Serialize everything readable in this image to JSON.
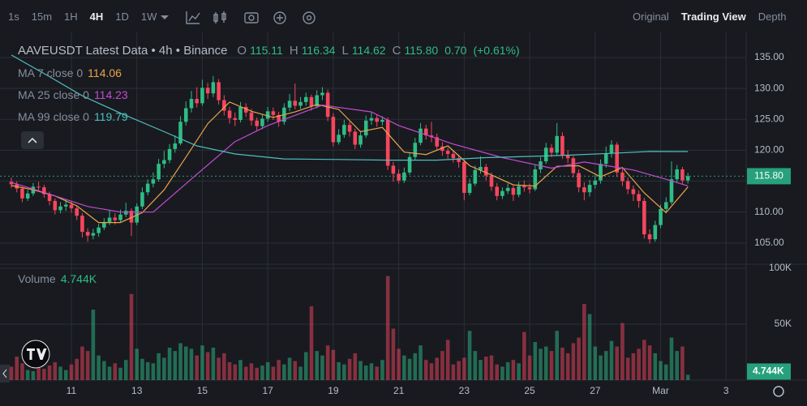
{
  "toolbar": {
    "intervals": [
      {
        "label": "1s",
        "active": false
      },
      {
        "label": "15m",
        "active": false
      },
      {
        "label": "1H",
        "active": false
      },
      {
        "label": "4H",
        "active": true
      },
      {
        "label": "1D",
        "active": false
      },
      {
        "label": "1W",
        "active": false
      }
    ],
    "views": [
      {
        "label": "Original",
        "active": false
      },
      {
        "label": "Trading View",
        "active": true
      },
      {
        "label": "Depth",
        "active": false
      }
    ]
  },
  "chart_data": {
    "type": "candlestick",
    "title": "AAVEUSDT Latest Data • 4h • Binance",
    "ohlc": [
      {
        "prefix": "O",
        "value": "115.11"
      },
      {
        "prefix": "H",
        "value": "116.34"
      },
      {
        "prefix": "L",
        "value": "114.62"
      },
      {
        "prefix": "C",
        "value": "115.80"
      }
    ],
    "change": "0.70",
    "change_pct": "(+0.61%)",
    "price_label": "115.80",
    "up_color": "#2ebd85",
    "down_color": "#f6465d",
    "grid": true,
    "xlim": [
      -2.08,
      134.68
    ],
    "xticks": [
      {
        "value": 11,
        "label": "11"
      },
      {
        "value": 23,
        "label": "13"
      },
      {
        "value": 35,
        "label": "15"
      },
      {
        "value": 47,
        "label": "17"
      },
      {
        "value": 59,
        "label": "19"
      },
      {
        "value": 71,
        "label": "21"
      },
      {
        "value": 83,
        "label": "23"
      },
      {
        "value": 95,
        "label": "25"
      },
      {
        "value": 107,
        "label": "27"
      },
      {
        "value": 119,
        "label": "Mar"
      },
      {
        "value": 131,
        "label": "3"
      }
    ],
    "ylim": [
      101.7,
      138.4
    ],
    "yticks": [
      {
        "value": 105,
        "label": "105.00"
      },
      {
        "value": 110,
        "label": "110.00"
      },
      {
        "value": 115,
        "label": "115.00"
      },
      {
        "value": 120,
        "label": "120.00"
      },
      {
        "value": 125,
        "label": "125.00"
      },
      {
        "value": 130,
        "label": "130.00"
      },
      {
        "value": 135,
        "label": "135.00"
      }
    ],
    "open": [
      114.9,
      114.5,
      113.8,
      112.2,
      113.0,
      114.1,
      114.0,
      112.9,
      111.8,
      110.3,
      110.9,
      111.2,
      110.6,
      109.4,
      106.8,
      106.2,
      106.6,
      107.5,
      108.4,
      109.1,
      108.7,
      109.6,
      110.2,
      108.3,
      110.9,
      113.2,
      114.6,
      115.3,
      117.8,
      118.4,
      120.2,
      121.1,
      124.6,
      126.8,
      128.3,
      127.6,
      130.1,
      129.2,
      131.0,
      128.1,
      126.4,
      125.2,
      124.9,
      127.0,
      126.1,
      124.8,
      123.9,
      125.1,
      126.3,
      125.7,
      124.6,
      126.9,
      128.0,
      127.2,
      127.8,
      128.6,
      127.1,
      128.9,
      129.3,
      125.4,
      121.3,
      122.5,
      124.1,
      123.0,
      120.9,
      122.4,
      124.8,
      125.2,
      124.6,
      124.9,
      117.5,
      116.2,
      115.1,
      116.4,
      118.9,
      121.2,
      123.5,
      122.4,
      122.1,
      120.6,
      119.9,
      119.4,
      118.7,
      118.1,
      113.1,
      114.6,
      116.8,
      117.3,
      115.9,
      114.1,
      112.6,
      113.4,
      113.9,
      112.8,
      114.2,
      114.0,
      113.7,
      116.9,
      118.2,
      120.4,
      119.6,
      122.3,
      119.2,
      118.7,
      116.3,
      114.0,
      113.2,
      114.4,
      115.1,
      117.8,
      119.5,
      120.9,
      116.4,
      115.0,
      113.7,
      112.9,
      111.8,
      106.4,
      105.6,
      107.9,
      110.5,
      111.6,
      115.3,
      116.9,
      115.11
    ],
    "high": [
      115.6,
      115.0,
      114.1,
      113.6,
      114.7,
      114.9,
      114.4,
      113.3,
      112.2,
      111.6,
      112.0,
      111.8,
      111.0,
      109.8,
      107.4,
      107.3,
      108.1,
      109.0,
      110.3,
      109.8,
      110.4,
      111.5,
      110.6,
      111.4,
      114.0,
      115.3,
      116.4,
      118.6,
      119.9,
      121.0,
      122.4,
      125.5,
      127.9,
      129.6,
      130.2,
      131.4,
      130.9,
      132.0,
      131.5,
      128.9,
      127.0,
      126.1,
      127.8,
      127.6,
      126.7,
      125.3,
      125.9,
      127.0,
      126.9,
      126.2,
      127.6,
      129.1,
      130.8,
      128.6,
      129.3,
      129.0,
      129.7,
      130.2,
      129.8,
      126.0,
      123.4,
      124.9,
      124.6,
      123.5,
      123.1,
      125.6,
      126.1,
      125.8,
      125.5,
      125.3,
      118.1,
      116.9,
      117.2,
      119.6,
      122.0,
      124.4,
      124.1,
      124.6,
      122.7,
      121.3,
      120.4,
      119.9,
      119.3,
      118.5,
      115.4,
      117.5,
      119.0,
      117.8,
      116.4,
      114.7,
      114.0,
      114.6,
      114.3,
      114.9,
      115.1,
      114.6,
      117.6,
      118.9,
      121.2,
      121.0,
      124.4,
      122.9,
      120.0,
      119.1,
      116.9,
      114.8,
      115.2,
      116.0,
      118.5,
      120.6,
      121.6,
      121.3,
      117.0,
      115.6,
      114.3,
      113.5,
      112.3,
      107.2,
      108.6,
      111.2,
      112.4,
      118.2,
      117.6,
      117.3,
      116.34
    ],
    "low": [
      113.9,
      113.2,
      111.6,
      111.8,
      112.6,
      113.4,
      112.3,
      111.1,
      109.6,
      109.8,
      110.2,
      109.9,
      108.7,
      105.9,
      105.2,
      105.6,
      106.0,
      107.1,
      107.9,
      108.0,
      108.3,
      109.2,
      106.1,
      107.9,
      110.5,
      112.7,
      114.0,
      114.9,
      117.1,
      117.9,
      119.6,
      120.8,
      124.0,
      126.1,
      126.9,
      127.2,
      128.3,
      128.6,
      127.4,
      125.6,
      124.3,
      123.9,
      124.5,
      125.4,
      124.0,
      123.1,
      123.4,
      124.6,
      124.9,
      123.8,
      124.1,
      126.3,
      126.6,
      126.7,
      127.2,
      126.4,
      126.8,
      128.1,
      124.7,
      120.6,
      120.9,
      122.0,
      122.2,
      120.2,
      120.4,
      122.0,
      124.1,
      123.8,
      124.0,
      116.8,
      114.9,
      114.6,
      114.7,
      116.0,
      118.4,
      120.8,
      121.7,
      121.3,
      119.9,
      119.1,
      118.6,
      118.0,
      117.2,
      111.9,
      112.7,
      114.2,
      116.2,
      115.1,
      113.4,
      111.9,
      112.1,
      112.9,
      111.8,
      112.4,
      113.3,
      113.0,
      113.4,
      116.3,
      117.8,
      118.9,
      119.1,
      118.6,
      117.9,
      115.6,
      113.2,
      111.9,
      112.5,
      113.8,
      114.6,
      117.2,
      118.8,
      115.7,
      114.2,
      112.9,
      111.8,
      110.7,
      105.7,
      104.9,
      105.2,
      107.4,
      110.0,
      111.2,
      114.8,
      114.6,
      114.62
    ],
    "close": [
      114.5,
      113.8,
      112.2,
      113.0,
      114.1,
      114.0,
      112.9,
      111.8,
      110.3,
      110.9,
      111.2,
      110.6,
      109.4,
      106.8,
      106.2,
      106.6,
      107.5,
      108.4,
      109.1,
      108.7,
      109.6,
      110.2,
      108.3,
      110.9,
      113.2,
      114.6,
      115.3,
      117.8,
      118.4,
      120.2,
      121.1,
      124.6,
      126.8,
      128.3,
      127.6,
      130.1,
      129.2,
      131.0,
      128.1,
      126.4,
      125.2,
      124.9,
      127.0,
      126.1,
      124.8,
      123.9,
      125.1,
      126.3,
      125.7,
      124.6,
      126.9,
      128.0,
      127.2,
      127.8,
      128.6,
      127.1,
      128.9,
      129.3,
      125.4,
      121.3,
      122.5,
      124.1,
      123.0,
      120.9,
      122.4,
      124.8,
      125.2,
      124.6,
      124.9,
      117.5,
      116.2,
      115.1,
      116.4,
      118.9,
      121.2,
      123.5,
      122.4,
      122.1,
      120.6,
      119.9,
      119.4,
      118.7,
      118.1,
      113.1,
      114.6,
      116.8,
      117.3,
      115.9,
      114.1,
      112.6,
      113.4,
      113.9,
      112.8,
      114.2,
      114.0,
      113.7,
      116.9,
      118.2,
      120.4,
      119.6,
      122.3,
      119.2,
      118.7,
      116.3,
      114.0,
      113.2,
      114.4,
      115.1,
      117.8,
      119.5,
      120.9,
      116.4,
      115.0,
      113.7,
      112.9,
      111.8,
      106.4,
      105.6,
      107.9,
      110.5,
      111.6,
      115.3,
      116.9,
      115.11,
      115.8
    ],
    "volume_name": "Volume",
    "volume_last_label": "4.744K",
    "volume_ylim": [
      0,
      100000
    ],
    "volume_yticks": [
      {
        "value": 50000,
        "label": "50K"
      },
      {
        "value": 100000,
        "label": "100K"
      }
    ],
    "volume": [
      12000,
      21000,
      15000,
      9000,
      8000,
      11000,
      10000,
      13000,
      16000,
      12000,
      9000,
      14000,
      19000,
      30000,
      26000,
      63000,
      22000,
      17000,
      12000,
      15000,
      11000,
      18000,
      77000,
      28000,
      19000,
      16000,
      15000,
      24000,
      20000,
      29000,
      26000,
      33000,
      30000,
      28000,
      22000,
      31000,
      25000,
      29000,
      20000,
      24000,
      16000,
      14000,
      18000,
      12000,
      15000,
      11000,
      13000,
      16000,
      12000,
      18000,
      14000,
      20000,
      17000,
      12000,
      25000,
      66000,
      26000,
      22000,
      31000,
      27000,
      16000,
      14000,
      19000,
      24000,
      17000,
      13000,
      15000,
      12000,
      18000,
      93000,
      46000,
      28000,
      22000,
      19000,
      24000,
      31000,
      18000,
      15000,
      20000,
      26000,
      36000,
      14000,
      17000,
      20000,
      44000,
      26000,
      18000,
      21000,
      22000,
      14000,
      12000,
      16000,
      18000,
      15000,
      43000,
      22000,
      34000,
      28000,
      30000,
      26000,
      44000,
      29000,
      24000,
      33000,
      38000,
      68000,
      59000,
      30000,
      22000,
      26000,
      35000,
      30000,
      51000,
      20000,
      24000,
      28000,
      36000,
      31000,
      24000,
      17000,
      14000,
      38000,
      26000,
      30000,
      4744
    ],
    "ma": [
      {
        "name": "MA 7 close 0",
        "color": "#e9a34a",
        "last": 114.06,
        "x": [
          0,
          4,
          8,
          12,
          16,
          20,
          24,
          28,
          32,
          36,
          40,
          44,
          48,
          52,
          56,
          60,
          64,
          68,
          72,
          76,
          80,
          84,
          88,
          92,
          96,
          100,
          104,
          108,
          112,
          116,
          120,
          124
        ],
        "values": [
          114.3,
          113.6,
          112.6,
          111.0,
          108.3,
          108.3,
          109.9,
          113.6,
          118.9,
          124.3,
          127.8,
          126.3,
          125.3,
          126.2,
          127.4,
          126.6,
          123.0,
          123.7,
          119.7,
          119.3,
          120.7,
          117.5,
          116.0,
          114.4,
          114.2,
          117.4,
          117.5,
          115.7,
          117.2,
          113.1,
          109.9,
          114.06
        ]
      },
      {
        "name": "MA 25 close 0",
        "color": "#c34bd2",
        "last": 114.23,
        "x": [
          0,
          7,
          14,
          20,
          26,
          34,
          41,
          47,
          57,
          66,
          71,
          81,
          90,
          99,
          105,
          114,
          120,
          124
        ],
        "values": [
          114.8,
          112.9,
          110.9,
          110.0,
          110.0,
          116.1,
          121.4,
          124.0,
          127.3,
          126.2,
          124.0,
          121.0,
          118.8,
          117.1,
          118.1,
          116.8,
          115.3,
          114.23
        ]
      },
      {
        "name": "MA 99 close 0",
        "color": "#4fbfbe",
        "last": 119.79,
        "x": [
          0,
          7,
          13,
          20,
          28,
          34,
          41,
          50,
          60,
          69,
          78,
          87,
          95,
          102,
          110,
          117,
          124
        ],
        "values": [
          135.4,
          131.9,
          128.8,
          126.0,
          123.0,
          120.7,
          119.4,
          118.6,
          118.5,
          118.4,
          118.4,
          118.8,
          119.0,
          119.2,
          119.5,
          119.8,
          119.79
        ]
      }
    ]
  }
}
